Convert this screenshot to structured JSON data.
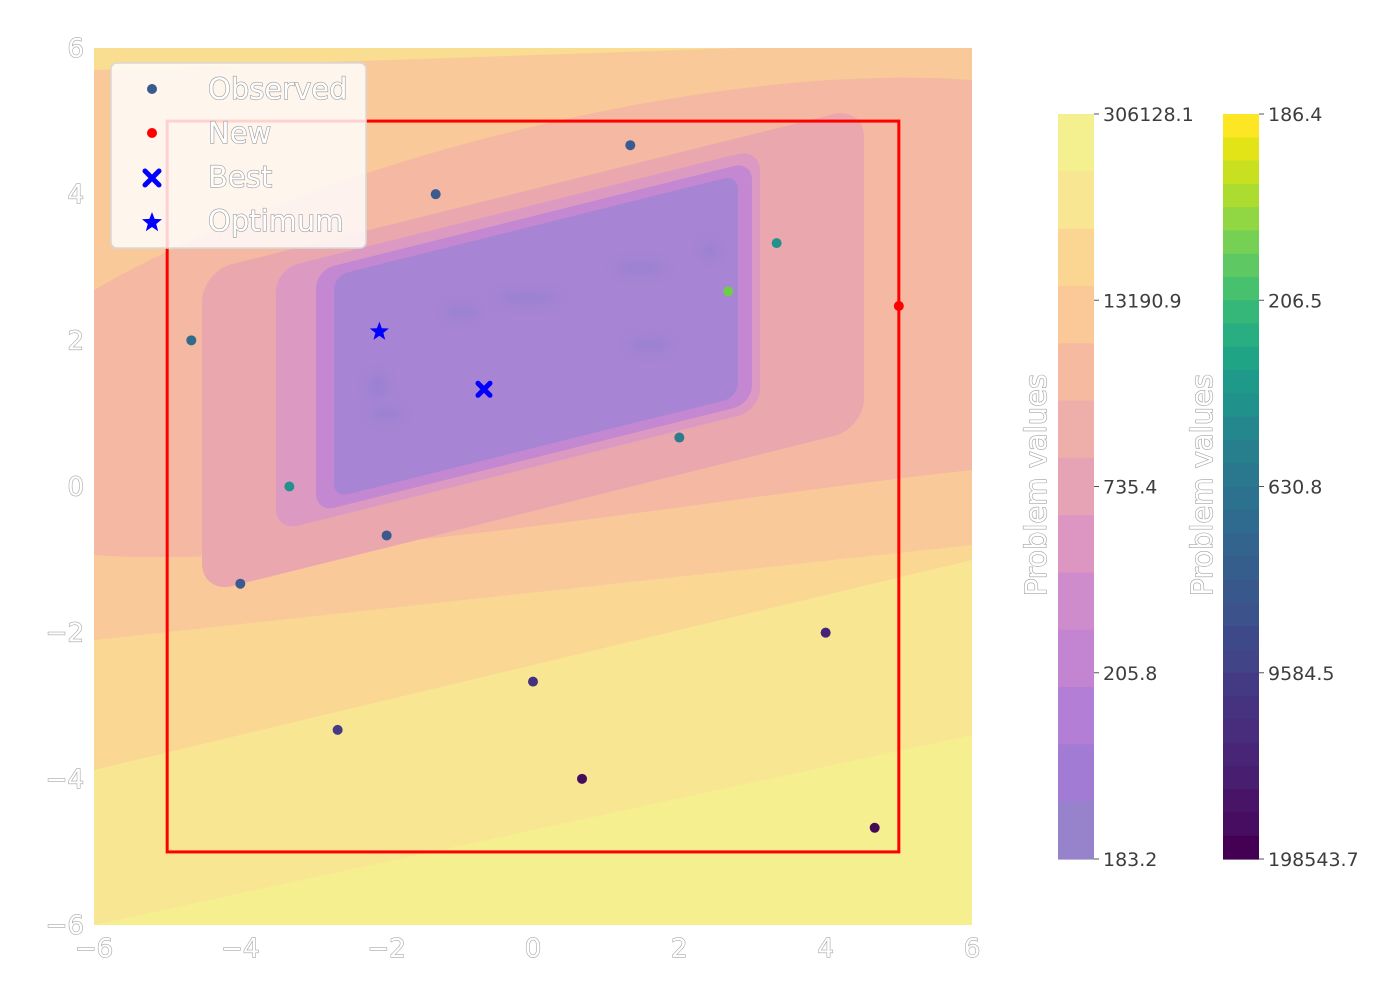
{
  "chart_data": {
    "type": "scatter",
    "background": "filled contour map of the objective",
    "x_range": [
      -6,
      6
    ],
    "y_range": [
      -6,
      6
    ],
    "x_ticks": [
      "−6",
      "−4",
      "−2",
      "0",
      "2",
      "4",
      "6"
    ],
    "y_ticks": [
      "6",
      "4",
      "2",
      "0",
      "−2",
      "−4",
      "−6"
    ],
    "bounds_box": {
      "x": [
        -5,
        5
      ],
      "y": [
        -5,
        5
      ],
      "color": "#ff0000"
    },
    "legend": {
      "placement": "top-left",
      "entries": [
        {
          "label": "Observed",
          "marker": "circle",
          "color": "#3b5a8f"
        },
        {
          "label": "New",
          "marker": "circle",
          "color": "#ff0000"
        },
        {
          "label": "Best",
          "marker": "x",
          "color": "#0000ff"
        },
        {
          "label": "Optimum",
          "marker": "star",
          "color": "#0000ff"
        }
      ]
    },
    "series": [
      {
        "name": "Observed",
        "points": [
          {
            "x": 1.33,
            "y": 4.67,
            "color": "#3b5a8f"
          },
          {
            "x": -1.33,
            "y": 4.0,
            "color": "#3b5a8f"
          },
          {
            "x": 3.33,
            "y": 3.33,
            "color": "#26908a"
          },
          {
            "x": 2.67,
            "y": 2.67,
            "color": "#6fcc46"
          },
          {
            "x": -4.67,
            "y": 2.0,
            "color": "#33698b"
          },
          {
            "x": 2.0,
            "y": 0.67,
            "color": "#2e7b8c"
          },
          {
            "x": -3.33,
            "y": 0.0,
            "color": "#26908a"
          },
          {
            "x": -2.0,
            "y": -0.67,
            "color": "#3b5a8f"
          },
          {
            "x": -4.0,
            "y": -1.33,
            "color": "#3b5a8f"
          },
          {
            "x": 4.0,
            "y": -2.0,
            "color": "#46237a"
          },
          {
            "x": 0.0,
            "y": -2.67,
            "color": "#45327f"
          },
          {
            "x": -2.67,
            "y": -3.33,
            "color": "#453a83"
          },
          {
            "x": 0.67,
            "y": -4.0,
            "color": "#440e5d"
          },
          {
            "x": 4.67,
            "y": -4.67,
            "color": "#450a55"
          }
        ]
      },
      {
        "name": "New",
        "points": [
          {
            "x": 5.0,
            "y": 2.47,
            "color": "#ff0000"
          }
        ]
      },
      {
        "name": "Best",
        "points": [
          {
            "x": -0.67,
            "y": 1.33,
            "color": "#0000ff"
          }
        ]
      },
      {
        "name": "Optimum",
        "points": [
          {
            "x": -2.1,
            "y": 2.12,
            "color": "#0000ff"
          }
        ]
      }
    ],
    "colorbars": [
      {
        "label": "Problem values",
        "ticks": [
          "306128.1",
          "13190.9",
          "735.4",
          "205.8",
          "183.2"
        ],
        "colors": [
          "#f4f08f",
          "#f8e693",
          "#fad692",
          "#fbc997",
          "#f5baa0",
          "#eeaea9",
          "#e6a3b5",
          "#dd96c1",
          "#cf8ccc",
          "#c384d1",
          "#b37ed5",
          "#a27cd4",
          "#9683cc"
        ]
      },
      {
        "label": "Problem values",
        "ticks": [
          "186.4",
          "206.5",
          "630.8",
          "9584.5",
          "198543.7"
        ],
        "colormap": "viridis-reversed"
      }
    ]
  }
}
